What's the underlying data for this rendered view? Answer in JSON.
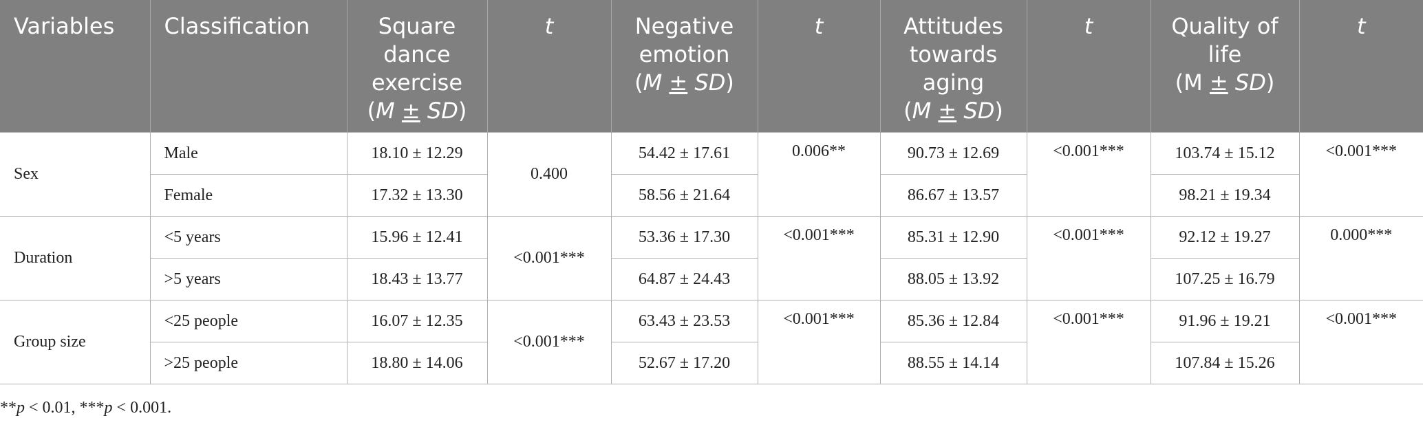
{
  "header": {
    "variables": "Variables",
    "classification": "Classification",
    "square_dance_l1": "Square",
    "square_dance_l2": "dance",
    "square_dance_l3": "exercise",
    "negative_l1": "Negative",
    "negative_l2": "emotion",
    "attitudes_l1": "Attitudes",
    "attitudes_l2": "towards",
    "attitudes_l3": "aging",
    "qol_l1": "Quality of",
    "qol_l2": "life",
    "t": "t",
    "msd_open": "(",
    "msd_m": "M",
    "msd_pm": "±",
    "msd_sd": "SD",
    "msd_close": ")"
  },
  "groups": [
    {
      "variable": "Sex",
      "t_square": "0.400",
      "t_negative": "0.006**",
      "t_attitudes": "<0.001***",
      "t_qol": "<0.001***",
      "rows": [
        {
          "classification": "Male",
          "square": "18.10 ± 12.29",
          "negative": "54.42 ± 17.61",
          "attitudes": "90.73 ± 12.69",
          "qol": "103.74 ± 15.12"
        },
        {
          "classification": "Female",
          "square": "17.32 ± 13.30",
          "negative": "58.56 ± 21.64",
          "attitudes": "86.67 ± 13.57",
          "qol": "98.21 ± 19.34"
        }
      ]
    },
    {
      "variable": "Duration",
      "t_square": "<0.001***",
      "t_negative": "<0.001***",
      "t_attitudes": "<0.001***",
      "t_qol": "0.000***",
      "rows": [
        {
          "classification": "<5 years",
          "square": "15.96 ± 12.41",
          "negative": "53.36 ± 17.30",
          "attitudes": "85.31 ± 12.90",
          "qol": "92.12 ± 19.27"
        },
        {
          "classification": ">5 years",
          "square": "18.43 ± 13.77",
          "negative": "64.87 ± 24.43",
          "attitudes": "88.05 ± 13.92",
          "qol": "107.25 ± 16.79"
        }
      ]
    },
    {
      "variable": "Group size",
      "t_square": "<0.001***",
      "t_negative": "<0.001***",
      "t_attitudes": "<0.001***",
      "t_qol": "<0.001***",
      "rows": [
        {
          "classification": "<25 people",
          "square": "16.07 ± 12.35",
          "negative": "63.43 ± 23.53",
          "attitudes": "85.36 ± 12.84",
          "qol": "91.96 ± 19.21"
        },
        {
          "classification": ">25 people",
          "square": "18.80 ± 14.06",
          "negative": "52.67 ± 17.20",
          "attitudes": "88.55 ± 14.14",
          "qol": "107.84 ± 15.26"
        }
      ]
    }
  ],
  "footnote": {
    "stars2": "**",
    "p1": "p",
    "text1": " < 0.01, ",
    "stars3": "***",
    "p2": "p",
    "text2": " < 0.001."
  }
}
